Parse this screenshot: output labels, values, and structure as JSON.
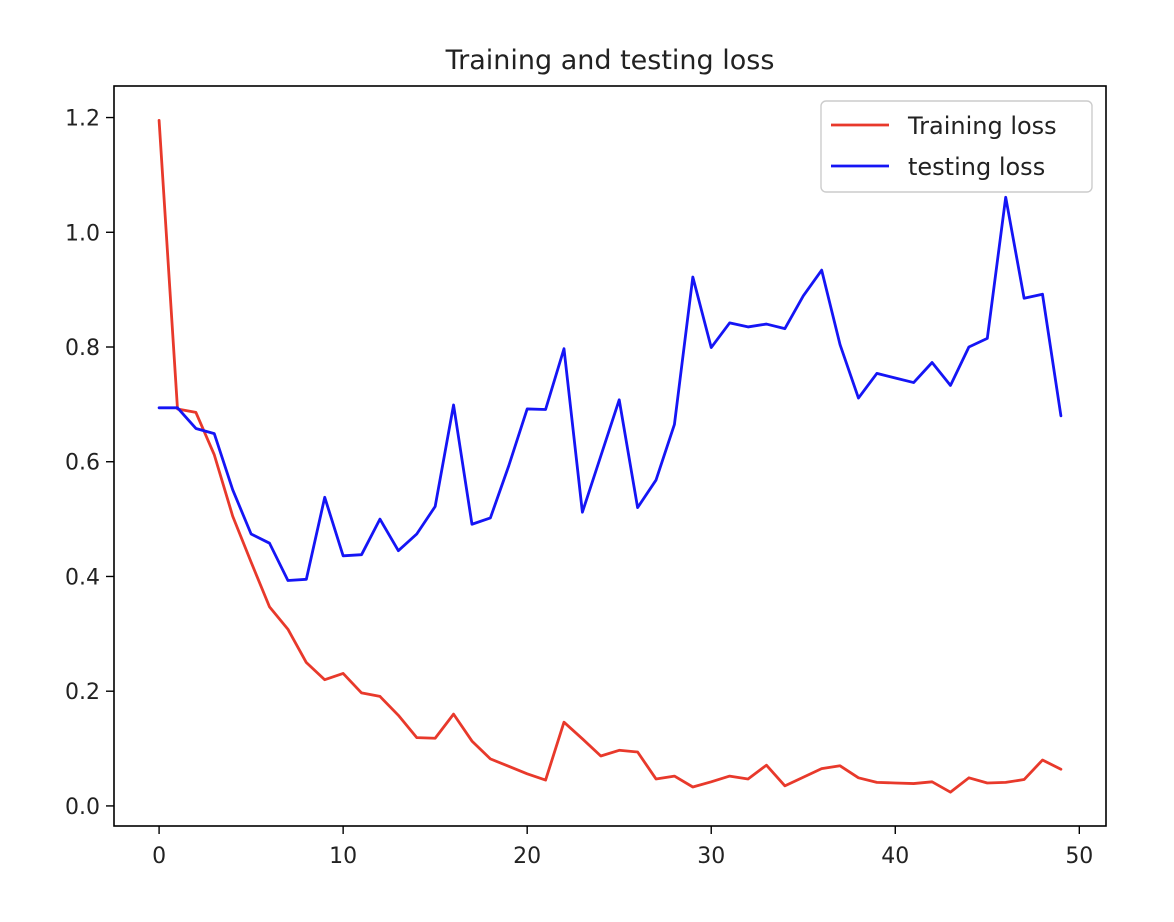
{
  "chart_data": {
    "type": "line",
    "title": "Training and testing loss",
    "xlabel": "",
    "ylabel": "",
    "xlim": [
      -2.45,
      51.45
    ],
    "ylim": [
      -0.035,
      1.255
    ],
    "xticks": [
      0,
      10,
      20,
      30,
      40,
      50
    ],
    "yticks": [
      0.0,
      0.2,
      0.4,
      0.6,
      0.8,
      1.0,
      1.2
    ],
    "ytick_labels": [
      "0.0",
      "0.2",
      "0.4",
      "0.6",
      "0.8",
      "1.0",
      "1.2"
    ],
    "grid": false,
    "legend_position": "top-right",
    "x": [
      0,
      1,
      2,
      3,
      4,
      5,
      6,
      7,
      8,
      9,
      10,
      11,
      12,
      13,
      14,
      15,
      16,
      17,
      18,
      19,
      20,
      21,
      22,
      23,
      24,
      25,
      26,
      27,
      28,
      29,
      30,
      31,
      32,
      33,
      34,
      35,
      36,
      37,
      38,
      39,
      40,
      41,
      42,
      43,
      44,
      45,
      46,
      47,
      48,
      49
    ],
    "series": [
      {
        "name": "Training loss",
        "color": "#e8392b",
        "values": [
          1.195,
          0.692,
          0.686,
          0.612,
          0.505,
          0.425,
          0.347,
          0.308,
          0.25,
          0.22,
          0.231,
          0.197,
          0.191,
          0.158,
          0.119,
          0.118,
          0.16,
          0.113,
          0.082,
          0.069,
          0.056,
          0.045,
          0.146,
          0.117,
          0.087,
          0.097,
          0.094,
          0.047,
          0.052,
          0.033,
          0.042,
          0.052,
          0.047,
          0.071,
          0.035,
          0.05,
          0.065,
          0.07,
          0.049,
          0.041,
          0.04,
          0.039,
          0.042,
          0.024,
          0.049,
          0.04,
          0.041,
          0.046,
          0.08,
          0.064
        ]
      },
      {
        "name": "testing loss",
        "color": "#1515f5",
        "values": [
          0.694,
          0.694,
          0.658,
          0.649,
          0.551,
          0.474,
          0.458,
          0.393,
          0.395,
          0.538,
          0.436,
          0.438,
          0.5,
          0.445,
          0.474,
          0.522,
          0.699,
          0.491,
          0.502,
          0.593,
          0.692,
          0.691,
          0.797,
          0.512,
          0.61,
          0.708,
          0.52,
          0.568,
          0.665,
          0.922,
          0.799,
          0.842,
          0.835,
          0.84,
          0.832,
          0.889,
          0.934,
          0.804,
          0.711,
          0.754,
          0.746,
          0.738,
          0.773,
          0.733,
          0.8,
          0.815,
          1.061,
          0.885,
          0.892,
          0.68
        ]
      }
    ]
  }
}
